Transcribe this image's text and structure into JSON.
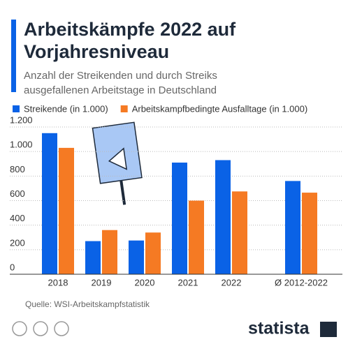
{
  "chart_data": {
    "type": "bar",
    "title": "Arbeitskämpfe 2022 auf Vorjahresniveau",
    "subtitle": "Anzahl der Streikenden und durch Streiks ausgefallenen Arbeitstage in Deutschland",
    "categories": [
      "2018",
      "2019",
      "2020",
      "2021",
      "2022",
      "Ø 2012-2022"
    ],
    "series": [
      {
        "name": "Streikende (in 1.000)",
        "color": "#0a62e6",
        "values": [
          1150,
          270,
          275,
          910,
          930,
          760
        ]
      },
      {
        "name": "Arbeitskampfbedingte Ausfalltage (in 1.000)",
        "color": "#f57a23",
        "values": [
          1030,
          360,
          340,
          600,
          675,
          665
        ]
      }
    ],
    "ylim": [
      0,
      1200
    ],
    "yticks": [
      0,
      200,
      400,
      600,
      800,
      {
        "value": 1000,
        "label": "1.000"
      },
      {
        "value": 1200,
        "label": "1.200"
      }
    ],
    "grid": true,
    "legend": "top",
    "source": "Quelle: WSI-Arbeitskampfstatistik",
    "brand": "statista"
  }
}
